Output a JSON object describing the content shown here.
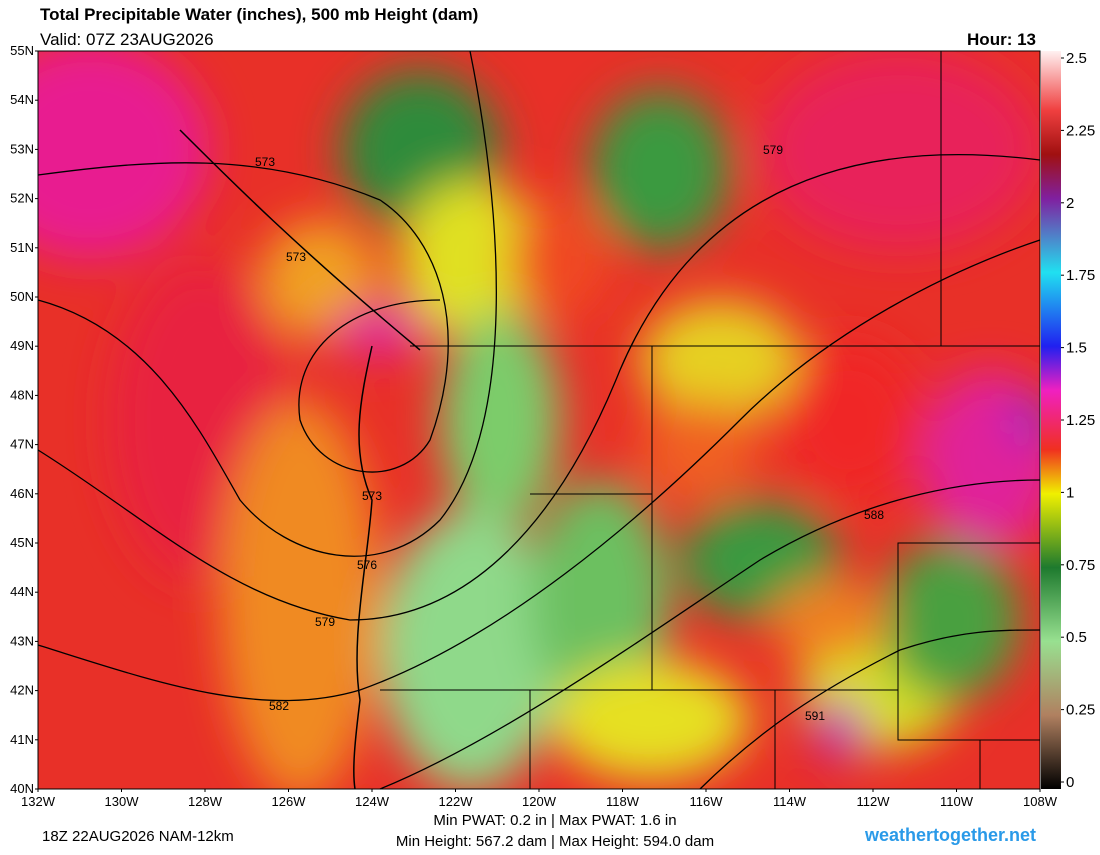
{
  "header": {
    "title": "Total Precipitable Water (inches), 500 mb Height (dam)",
    "valid": "Valid: 07Z 23AUG2026",
    "hour": "Hour: 13"
  },
  "lat_labels": [
    "55N",
    "54N",
    "53N",
    "52N",
    "51N",
    "50N",
    "49N",
    "48N",
    "47N",
    "46N",
    "45N",
    "44N",
    "43N",
    "42N",
    "41N",
    "40N"
  ],
  "lon_labels": [
    "132W",
    "130W",
    "128W",
    "126W",
    "124W",
    "122W",
    "120W",
    "118W",
    "116W",
    "114W",
    "112W",
    "110W",
    "108W"
  ],
  "colorbar": {
    "lim": [
      0,
      2.5
    ],
    "ticks": [
      0,
      0.25,
      0.5,
      0.75,
      1,
      1.25,
      1.5,
      1.75,
      2,
      2.25,
      2.5
    ]
  },
  "contour_labels": [
    "573",
    "573",
    "573",
    "576",
    "579",
    "579",
    "582",
    "588",
    "591"
  ],
  "footer": {
    "run": "18Z 22AUG2026 NAM-12km",
    "pwat": "Min PWAT:   0.2 in | Max PWAT:   1.6 in",
    "height": "Min Height: 567.2 dam | Max Height: 594.0 dam",
    "site": "weathertogether.net"
  }
}
